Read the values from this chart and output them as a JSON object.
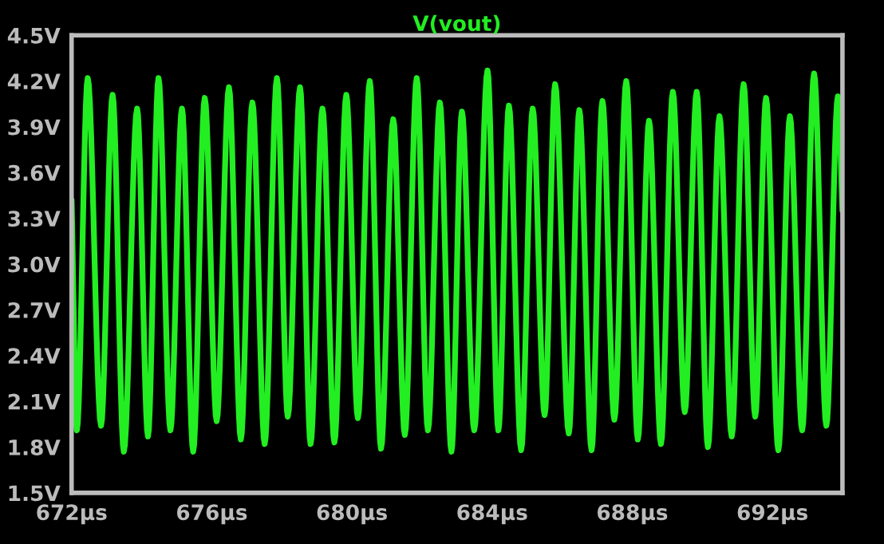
{
  "chart_data": {
    "type": "line",
    "xlim": [
      672,
      694
    ],
    "ylim": [
      1.5,
      4.5
    ],
    "xticks": [
      {
        "value": 672,
        "label": "672µs"
      },
      {
        "value": 676,
        "label": "676µs"
      },
      {
        "value": 680,
        "label": "680µs"
      },
      {
        "value": 684,
        "label": "684µs"
      },
      {
        "value": 688,
        "label": "688µs"
      },
      {
        "value": 692,
        "label": "692µs"
      }
    ],
    "yticks": [
      {
        "value": 1.5,
        "label": "1.5V"
      },
      {
        "value": 1.8,
        "label": "1.8V"
      },
      {
        "value": 2.1,
        "label": "2.1V"
      },
      {
        "value": 2.4,
        "label": "2.4V"
      },
      {
        "value": 2.7,
        "label": "2.7V"
      },
      {
        "value": 3.0,
        "label": "3.0V"
      },
      {
        "value": 3.3,
        "label": "3.3V"
      },
      {
        "value": 3.6,
        "label": "3.6V"
      },
      {
        "value": 3.9,
        "label": "3.9V"
      },
      {
        "value": 4.2,
        "label": "4.2V"
      },
      {
        "value": 4.5,
        "label": "4.5V"
      }
    ],
    "grid": false,
    "legend": false,
    "series": [
      {
        "name": "V(vout)",
        "color": "#22ee22",
        "x": [
          672.0,
          672.15,
          672.46,
          672.84,
          673.17,
          673.49,
          673.87,
          674.18,
          674.48,
          674.82,
          675.15,
          675.47,
          675.8,
          676.14,
          676.49,
          676.83,
          677.16,
          677.51,
          677.86,
          678.17,
          678.52,
          678.82,
          679.16,
          679.5,
          679.84,
          680.17,
          680.51,
          680.83,
          681.18,
          681.51,
          681.85,
          682.17,
          682.51,
          682.84,
          683.14,
          683.49,
          683.87,
          684.18,
          684.48,
          684.83,
          685.16,
          685.5,
          685.8,
          686.19,
          686.49,
          686.84,
          687.15,
          687.49,
          687.83,
          688.16,
          688.48,
          688.82,
          689.16,
          689.5,
          689.84,
          690.16,
          690.49,
          690.84,
          691.18,
          691.51,
          691.82,
          692.17,
          692.5,
          692.85,
          693.19,
          693.54,
          693.87,
          694.0
        ],
        "values": [
          3.42,
          1.91,
          4.22,
          1.94,
          4.11,
          1.77,
          4.02,
          1.87,
          4.22,
          1.91,
          4.02,
          1.77,
          4.09,
          1.97,
          4.16,
          1.85,
          4.06,
          1.82,
          4.22,
          2.0,
          4.16,
          1.82,
          4.02,
          1.83,
          4.11,
          1.99,
          4.2,
          1.79,
          3.95,
          1.88,
          4.22,
          1.91,
          4.06,
          1.77,
          4.0,
          1.91,
          4.27,
          1.91,
          4.04,
          1.78,
          4.02,
          2.01,
          4.18,
          1.89,
          4.01,
          1.78,
          4.07,
          1.98,
          4.2,
          1.85,
          3.94,
          1.82,
          4.13,
          2.03,
          4.13,
          1.8,
          3.97,
          1.87,
          4.18,
          2.0,
          4.09,
          1.78,
          3.97,
          1.91,
          4.25,
          1.94,
          4.1,
          3.35
        ]
      }
    ]
  }
}
